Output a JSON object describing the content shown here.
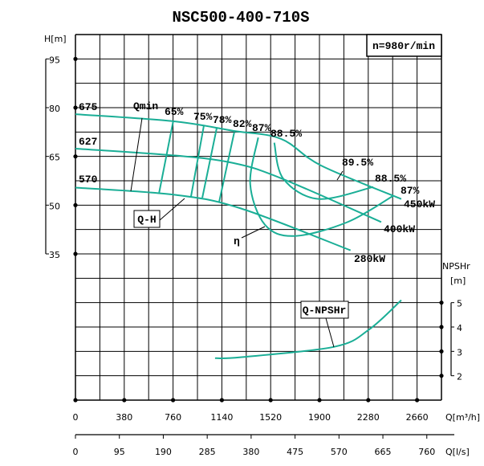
{
  "chart_data": {
    "type": "line",
    "title": "NSC500-400-710S",
    "speed_label": "n=980r/min",
    "x_axis": {
      "label": "Q[m³/h]",
      "range": [
        0,
        2850
      ],
      "ticks": [
        0,
        380,
        760,
        1140,
        1520,
        1900,
        2280,
        2660
      ]
    },
    "x2_axis": {
      "label": "Q[l/s]",
      "ticks": [
        0,
        95,
        190,
        285,
        380,
        475,
        570,
        665,
        760
      ]
    },
    "y_axis": {
      "label": "H[m]",
      "range": [
        -10,
        102.5
      ],
      "ticks": [
        95,
        80,
        65,
        50,
        35
      ]
    },
    "y2_axis": {
      "label_line1": "NPSHr",
      "label_line2": "[m]",
      "range": [
        1,
        16
      ],
      "ticks": [
        5,
        4,
        3,
        2
      ]
    },
    "grid": true,
    "curve_color": "#1aae96",
    "qh_curves": [
      {
        "name": "675",
        "power": "450kW",
        "points": [
          [
            0,
            78.0
          ],
          [
            767,
            75.8
          ],
          [
            1225,
            72.9
          ],
          [
            1600,
            70.4
          ],
          [
            1912,
            62.2
          ],
          [
            2537,
            51.9
          ]
        ]
      },
      {
        "name": "627",
        "power": "400kW",
        "points": [
          [
            0,
            67.4
          ],
          [
            769,
            65.3
          ],
          [
            1225,
            63.0
          ],
          [
            1600,
            58.3
          ],
          [
            2381,
            44.8
          ]
        ]
      },
      {
        "name": "570",
        "power": "280kW",
        "points": [
          [
            0,
            55.4
          ],
          [
            769,
            53.2
          ],
          [
            1287,
            49.0
          ],
          [
            2142,
            36.1
          ]
        ]
      }
    ],
    "efficiency_curves": [
      {
        "name": "65%",
        "points": [
          [
            761,
            75.8
          ],
          [
            652,
            53.9
          ]
        ]
      },
      {
        "name": "75%",
        "points": [
          [
            1000,
            74.5
          ],
          [
            900,
            52.7
          ]
        ]
      },
      {
        "name": "78%",
        "points": [
          [
            1100,
            73.7
          ],
          [
            988,
            52.3
          ]
        ]
      },
      {
        "name": "82%",
        "points": [
          [
            1237,
            72.5
          ],
          [
            1119,
            51.0
          ]
        ]
      },
      {
        "name": "87%",
        "points": [
          [
            1423,
            70.8
          ],
          [
            1361,
            56.4
          ],
          [
            1475,
            44.0
          ],
          [
            1704,
            40.5
          ],
          [
            2119,
            44.8
          ],
          [
            2475,
            52.9
          ]
        ]
      },
      {
        "name": "88.5%",
        "points": [
          [
            1548,
            69.2
          ],
          [
            1619,
            58.1
          ],
          [
            1892,
            51.9
          ],
          [
            2319,
            55.6
          ]
        ]
      }
    ],
    "npsh_curve": {
      "name": "Q-NPSHr",
      "points": [
        [
          1087,
          2.72
        ],
        [
          1287,
          2.76
        ],
        [
          2017,
          3.19
        ],
        [
          2287,
          3.9
        ],
        [
          2537,
          5.1
        ]
      ]
    },
    "annotations": {
      "qmin": "Qmin",
      "qh": "Q-H",
      "eta": "η",
      "npsh": "Q-NPSHr",
      "eff_labels": [
        "65%",
        "75%",
        "78%",
        "82%",
        "87%",
        "88.5%",
        "89.5%",
        "88.5%",
        "87%"
      ]
    }
  }
}
